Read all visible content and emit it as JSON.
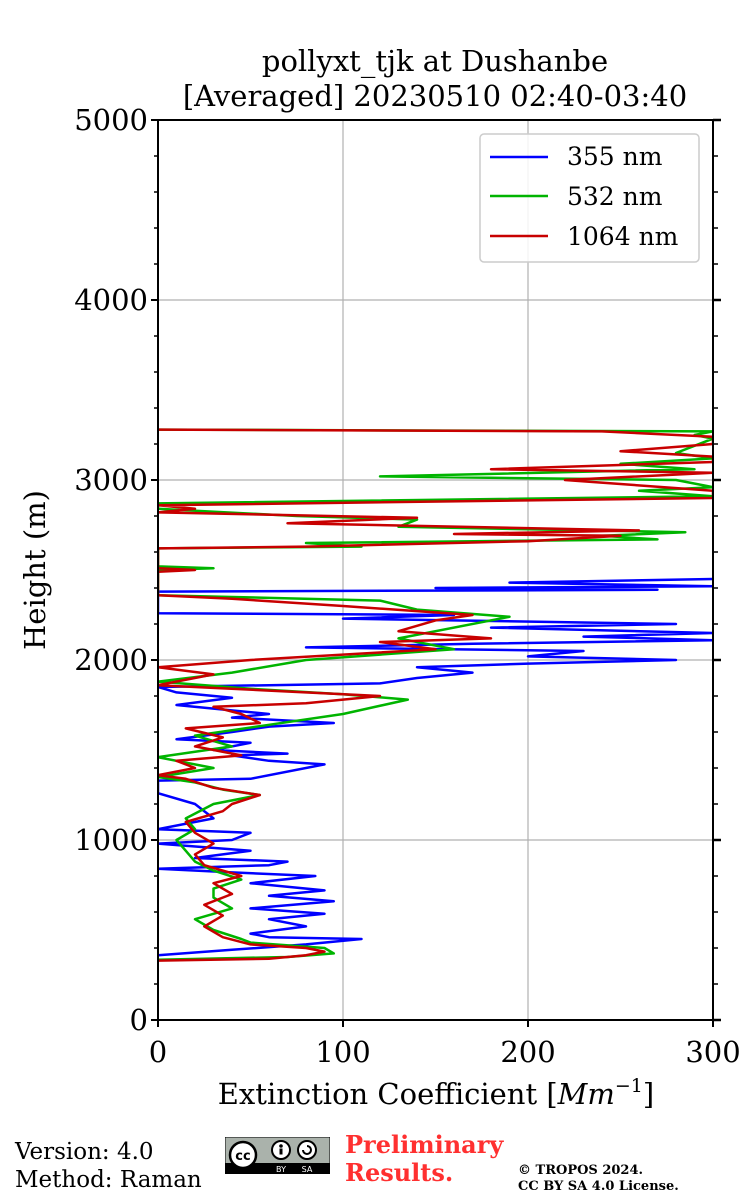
{
  "chart_data": {
    "type": "line",
    "title": "pollyxt_tjk at Dushanbe",
    "subtitle": "[Averaged] 20230510 02:40-03:40",
    "xlabel_text": "Extinction Coefficient ",
    "xlabel_math_base": "Mm",
    "xlabel_math_exp": "−1",
    "ylabel": "Height (m)",
    "xlim": [
      0,
      300
    ],
    "ylim": [
      0,
      5000
    ],
    "xticks": [
      0,
      100,
      200,
      300
    ],
    "yticks": [
      0,
      1000,
      2000,
      3000,
      4000,
      5000
    ],
    "grid": true,
    "legend_position": "top-right",
    "series": [
      {
        "name": "355 nm",
        "color": "#0000ff",
        "points": [
          [
            0,
            360
          ],
          [
            40,
            390
          ],
          [
            80,
            420
          ],
          [
            110,
            450
          ],
          [
            60,
            460
          ],
          [
            50,
            480
          ],
          [
            80,
            520
          ],
          [
            60,
            560
          ],
          [
            90,
            590
          ],
          [
            50,
            620
          ],
          [
            95,
            660
          ],
          [
            60,
            690
          ],
          [
            90,
            720
          ],
          [
            50,
            760
          ],
          [
            85,
            800
          ],
          [
            40,
            820
          ],
          [
            0,
            840
          ],
          [
            60,
            860
          ],
          [
            70,
            880
          ],
          [
            20,
            900
          ],
          [
            50,
            940
          ],
          [
            0,
            980
          ],
          [
            40,
            1000
          ],
          [
            50,
            1040
          ],
          [
            0,
            1060
          ],
          [
            30,
            1120
          ],
          [
            20,
            1200
          ],
          [
            0,
            1260
          ],
          [
            0,
            1330
          ],
          [
            50,
            1340
          ],
          [
            90,
            1420
          ],
          [
            60,
            1440
          ],
          [
            40,
            1470
          ],
          [
            70,
            1480
          ],
          [
            30,
            1500
          ],
          [
            50,
            1540
          ],
          [
            10,
            1560
          ],
          [
            40,
            1600
          ],
          [
            60,
            1630
          ],
          [
            95,
            1650
          ],
          [
            40,
            1680
          ],
          [
            60,
            1700
          ],
          [
            30,
            1730
          ],
          [
            10,
            1750
          ],
          [
            40,
            1790
          ],
          [
            10,
            1820
          ],
          [
            0,
            1850
          ],
          [
            120,
            1870
          ],
          [
            140,
            1900
          ],
          [
            170,
            1930
          ],
          [
            140,
            1960
          ],
          [
            200,
            1980
          ],
          [
            280,
            2000
          ],
          [
            200,
            2020
          ],
          [
            230,
            2050
          ],
          [
            80,
            2070
          ],
          [
            170,
            2090
          ],
          [
            300,
            2110
          ],
          [
            230,
            2130
          ],
          [
            300,
            2150
          ],
          [
            180,
            2180
          ],
          [
            280,
            2200
          ],
          [
            100,
            2230
          ],
          [
            160,
            2250
          ],
          [
            0,
            2260
          ],
          [
            0,
            2380
          ],
          [
            270,
            2390
          ],
          [
            150,
            2400
          ],
          [
            300,
            2410
          ],
          [
            190,
            2430
          ],
          [
            300,
            2450
          ]
        ]
      },
      {
        "name": "532 nm",
        "color": "#00b400",
        "points": [
          [
            0,
            335
          ],
          [
            70,
            350
          ],
          [
            95,
            370
          ],
          [
            90,
            400
          ],
          [
            50,
            430
          ],
          [
            45,
            450
          ],
          [
            30,
            500
          ],
          [
            20,
            560
          ],
          [
            40,
            620
          ],
          [
            30,
            680
          ],
          [
            30,
            730
          ],
          [
            45,
            780
          ],
          [
            30,
            830
          ],
          [
            20,
            880
          ],
          [
            15,
            940
          ],
          [
            10,
            1000
          ],
          [
            20,
            1060
          ],
          [
            15,
            1120
          ],
          [
            30,
            1200
          ],
          [
            55,
            1250
          ],
          [
            35,
            1280
          ],
          [
            20,
            1320
          ],
          [
            0,
            1350
          ],
          [
            30,
            1400
          ],
          [
            0,
            1460
          ],
          [
            40,
            1520
          ],
          [
            20,
            1580
          ],
          [
            60,
            1640
          ],
          [
            100,
            1700
          ],
          [
            135,
            1780
          ],
          [
            100,
            1810
          ],
          [
            50,
            1840
          ],
          [
            0,
            1880
          ],
          [
            40,
            1930
          ],
          [
            80,
            2000
          ],
          [
            160,
            2060
          ],
          [
            130,
            2120
          ],
          [
            190,
            2240
          ],
          [
            140,
            2280
          ],
          [
            120,
            2330
          ],
          [
            40,
            2350
          ],
          [
            0,
            2360
          ],
          [
            0,
            2500
          ],
          [
            30,
            2510
          ],
          [
            0,
            2520
          ],
          [
            0,
            2620
          ],
          [
            110,
            2630
          ],
          [
            80,
            2650
          ],
          [
            270,
            2670
          ],
          [
            240,
            2690
          ],
          [
            285,
            2710
          ],
          [
            130,
            2740
          ],
          [
            140,
            2780
          ],
          [
            75,
            2800
          ],
          [
            0,
            2840
          ],
          [
            0,
            2870
          ],
          [
            300,
            2910
          ],
          [
            260,
            2940
          ],
          [
            300,
            2960
          ],
          [
            280,
            3000
          ],
          [
            120,
            3020
          ],
          [
            290,
            3060
          ],
          [
            250,
            3090
          ],
          [
            300,
            3120
          ],
          [
            280,
            3150
          ],
          [
            300,
            3230
          ],
          [
            290,
            3250
          ],
          [
            300,
            3270
          ],
          [
            0,
            3280
          ]
        ]
      },
      {
        "name": "1064 nm",
        "color": "#c80000",
        "points": [
          [
            0,
            330
          ],
          [
            60,
            340
          ],
          [
            80,
            360
          ],
          [
            90,
            380
          ],
          [
            80,
            400
          ],
          [
            50,
            420
          ],
          [
            35,
            460
          ],
          [
            25,
            520
          ],
          [
            35,
            580
          ],
          [
            25,
            640
          ],
          [
            40,
            700
          ],
          [
            30,
            760
          ],
          [
            45,
            800
          ],
          [
            25,
            860
          ],
          [
            20,
            920
          ],
          [
            30,
            980
          ],
          [
            20,
            1040
          ],
          [
            15,
            1100
          ],
          [
            35,
            1160
          ],
          [
            40,
            1200
          ],
          [
            55,
            1250
          ],
          [
            30,
            1290
          ],
          [
            15,
            1340
          ],
          [
            0,
            1360
          ],
          [
            20,
            1400
          ],
          [
            10,
            1440
          ],
          [
            45,
            1470
          ],
          [
            20,
            1520
          ],
          [
            35,
            1570
          ],
          [
            15,
            1620
          ],
          [
            55,
            1650
          ],
          [
            45,
            1700
          ],
          [
            30,
            1740
          ],
          [
            80,
            1760
          ],
          [
            120,
            1800
          ],
          [
            60,
            1830
          ],
          [
            0,
            1860
          ],
          [
            30,
            1920
          ],
          [
            0,
            1960
          ],
          [
            50,
            2000
          ],
          [
            100,
            2030
          ],
          [
            150,
            2060
          ],
          [
            120,
            2100
          ],
          [
            180,
            2120
          ],
          [
            130,
            2160
          ],
          [
            150,
            2220
          ],
          [
            170,
            2250
          ],
          [
            100,
            2300
          ],
          [
            40,
            2340
          ],
          [
            0,
            2360
          ],
          [
            0,
            2490
          ],
          [
            20,
            2500
          ],
          [
            0,
            2510
          ],
          [
            0,
            2620
          ],
          [
            80,
            2630
          ],
          [
            200,
            2660
          ],
          [
            250,
            2690
          ],
          [
            160,
            2700
          ],
          [
            260,
            2720
          ],
          [
            70,
            2760
          ],
          [
            140,
            2790
          ],
          [
            0,
            2820
          ],
          [
            20,
            2840
          ],
          [
            0,
            2860
          ],
          [
            300,
            2900
          ],
          [
            300,
            2940
          ],
          [
            220,
            3000
          ],
          [
            300,
            3040
          ],
          [
            180,
            3060
          ],
          [
            300,
            3100
          ],
          [
            300,
            3130
          ],
          [
            250,
            3160
          ],
          [
            300,
            3200
          ],
          [
            300,
            3240
          ],
          [
            240,
            3270
          ],
          [
            0,
            3280
          ]
        ]
      }
    ]
  },
  "footer": {
    "version": "Version: 4.0",
    "method": "Method: Raman",
    "cc_label": "cc",
    "cc_by": "BY",
    "cc_sa": "SA",
    "preliminary_line1": "Preliminary",
    "preliminary_line2": "Results.",
    "copyright_line1": "© TROPOS 2024.",
    "copyright_line2": "CC BY SA 4.0 License."
  }
}
